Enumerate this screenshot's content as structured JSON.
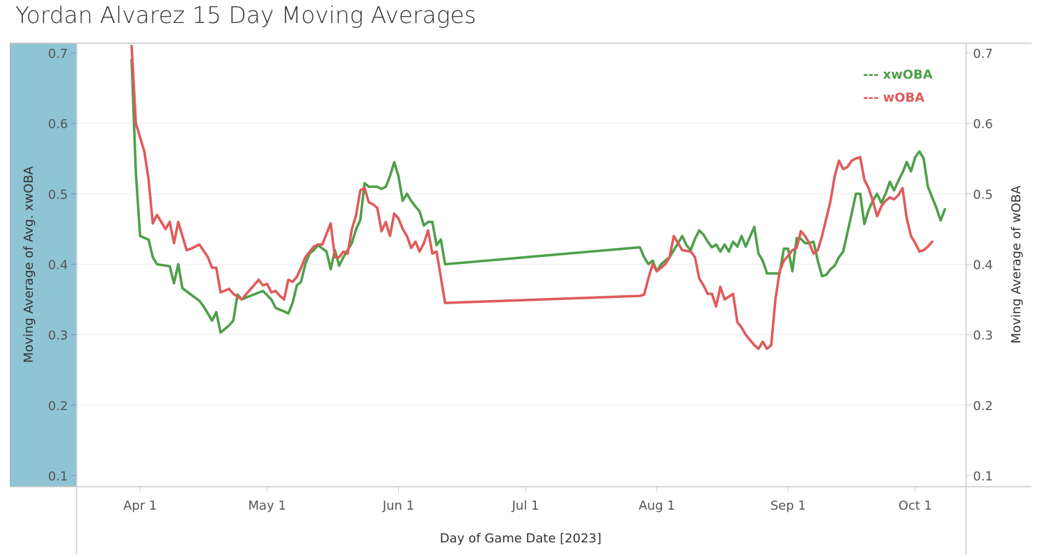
{
  "title": "Yordan Alvarez 15 Day Moving Averages",
  "colors": {
    "xwoba": "#4e9f4a",
    "woba": "#e05a5a",
    "left_band": "#8fc4d4",
    "axis": "#c8c8c8",
    "grid": "#eeeeee"
  },
  "chart_data": {
    "type": "line",
    "title": "Yordan Alvarez 15 Day Moving Averages",
    "xlabel": "Day of Game Date [2023]",
    "ylabel_left": "Moving Average of Avg. xwOBA",
    "ylabel_right": "Moving Average of wOBA",
    "ylim": [
      0.1,
      0.7
    ],
    "yticks": [
      0.7,
      0.6,
      0.5,
      0.4,
      0.3,
      0.2,
      0.1
    ],
    "ytick_labels": [
      "0.7",
      "0.6",
      "0.5",
      "0.4",
      "0.3",
      "0.2",
      "0.1"
    ],
    "xlim": [
      "2023-03-17",
      "2023-10-13"
    ],
    "xticks": [
      "2023-04-01",
      "2023-05-01",
      "2023-06-01",
      "2023-07-01",
      "2023-08-01",
      "2023-09-01",
      "2023-10-01"
    ],
    "xtick_labels": [
      "Apr 1",
      "May 1",
      "Jun 1",
      "Jul 1",
      "Aug 1",
      "Sep 1",
      "Oct 1"
    ],
    "grid": true,
    "legend": {
      "position": "top-right",
      "entries": [
        "--- xwOBA",
        "--- wOBA"
      ]
    },
    "series": [
      {
        "name": "xwOBA",
        "points": [
          [
            "2023-03-30",
            0.69
          ],
          [
            "2023-03-31",
            0.53
          ],
          [
            "2023-04-01",
            0.44
          ],
          [
            "2023-04-03",
            0.435
          ],
          [
            "2023-04-04",
            0.41
          ],
          [
            "2023-04-05",
            0.4
          ],
          [
            "2023-04-07",
            0.398
          ],
          [
            "2023-04-08",
            0.397
          ],
          [
            "2023-04-09",
            0.373
          ],
          [
            "2023-04-10",
            0.4
          ],
          [
            "2023-04-11",
            0.366
          ],
          [
            "2023-04-13",
            0.357
          ],
          [
            "2023-04-15",
            0.348
          ],
          [
            "2023-04-16",
            0.34
          ],
          [
            "2023-04-17",
            0.33
          ],
          [
            "2023-04-18",
            0.32
          ],
          [
            "2023-04-19",
            0.332
          ],
          [
            "2023-04-20",
            0.303
          ],
          [
            "2023-04-22",
            0.313
          ],
          [
            "2023-04-23",
            0.32
          ],
          [
            "2023-04-24",
            0.357
          ],
          [
            "2023-04-25",
            0.35
          ],
          [
            "2023-04-27",
            0.355
          ],
          [
            "2023-04-30",
            0.362
          ],
          [
            "2023-05-02",
            0.35
          ],
          [
            "2023-05-03",
            0.338
          ],
          [
            "2023-05-05",
            0.333
          ],
          [
            "2023-05-06",
            0.33
          ],
          [
            "2023-05-07",
            0.345
          ],
          [
            "2023-05-08",
            0.37
          ],
          [
            "2023-05-09",
            0.375
          ],
          [
            "2023-05-10",
            0.4
          ],
          [
            "2023-05-11",
            0.415
          ],
          [
            "2023-05-12",
            0.42
          ],
          [
            "2023-05-13",
            0.427
          ],
          [
            "2023-05-15",
            0.418
          ],
          [
            "2023-05-16",
            0.393
          ],
          [
            "2023-05-17",
            0.42
          ],
          [
            "2023-05-18",
            0.398
          ],
          [
            "2023-05-19",
            0.41
          ],
          [
            "2023-05-20",
            0.42
          ],
          [
            "2023-05-21",
            0.43
          ],
          [
            "2023-05-22",
            0.45
          ],
          [
            "2023-05-23",
            0.463
          ],
          [
            "2023-05-24",
            0.515
          ],
          [
            "2023-05-25",
            0.51
          ],
          [
            "2023-05-27",
            0.51
          ],
          [
            "2023-05-28",
            0.507
          ],
          [
            "2023-05-29",
            0.51
          ],
          [
            "2023-05-30",
            0.525
          ],
          [
            "2023-05-31",
            0.545
          ],
          [
            "2023-06-01",
            0.525
          ],
          [
            "2023-06-02",
            0.49
          ],
          [
            "2023-06-03",
            0.5
          ],
          [
            "2023-06-04",
            0.49
          ],
          [
            "2023-06-05",
            0.482
          ],
          [
            "2023-06-06",
            0.475
          ],
          [
            "2023-06-07",
            0.455
          ],
          [
            "2023-06-08",
            0.46
          ],
          [
            "2023-06-09",
            0.46
          ],
          [
            "2023-06-10",
            0.427
          ],
          [
            "2023-06-11",
            0.435
          ],
          [
            "2023-06-12",
            0.4
          ],
          [
            "2023-07-28",
            0.424
          ],
          [
            "2023-07-29",
            0.41
          ],
          [
            "2023-07-30",
            0.4
          ],
          [
            "2023-07-31",
            0.405
          ],
          [
            "2023-08-01",
            0.39
          ],
          [
            "2023-08-02",
            0.4
          ],
          [
            "2023-08-03",
            0.405
          ],
          [
            "2023-08-04",
            0.41
          ],
          [
            "2023-08-06",
            0.43
          ],
          [
            "2023-08-07",
            0.44
          ],
          [
            "2023-08-08",
            0.427
          ],
          [
            "2023-08-09",
            0.42
          ],
          [
            "2023-08-10",
            0.436
          ],
          [
            "2023-08-11",
            0.448
          ],
          [
            "2023-08-12",
            0.442
          ],
          [
            "2023-08-13",
            0.432
          ],
          [
            "2023-08-14",
            0.424
          ],
          [
            "2023-08-15",
            0.428
          ],
          [
            "2023-08-16",
            0.418
          ],
          [
            "2023-08-17",
            0.428
          ],
          [
            "2023-08-18",
            0.418
          ],
          [
            "2023-08-19",
            0.432
          ],
          [
            "2023-08-20",
            0.425
          ],
          [
            "2023-08-21",
            0.44
          ],
          [
            "2023-08-22",
            0.425
          ],
          [
            "2023-08-24",
            0.453
          ],
          [
            "2023-08-25",
            0.415
          ],
          [
            "2023-08-26",
            0.405
          ],
          [
            "2023-08-27",
            0.387
          ],
          [
            "2023-08-29",
            0.387
          ],
          [
            "2023-08-30",
            0.387
          ],
          [
            "2023-08-31",
            0.422
          ],
          [
            "2023-09-01",
            0.422
          ],
          [
            "2023-09-02",
            0.39
          ],
          [
            "2023-09-03",
            0.437
          ],
          [
            "2023-09-04",
            0.436
          ],
          [
            "2023-09-05",
            0.43
          ],
          [
            "2023-09-06",
            0.43
          ],
          [
            "2023-09-07",
            0.432
          ],
          [
            "2023-09-08",
            0.405
          ],
          [
            "2023-09-09",
            0.383
          ],
          [
            "2023-09-10",
            0.385
          ],
          [
            "2023-09-11",
            0.393
          ],
          [
            "2023-09-12",
            0.398
          ],
          [
            "2023-09-13",
            0.41
          ],
          [
            "2023-09-14",
            0.418
          ],
          [
            "2023-09-15",
            0.445
          ],
          [
            "2023-09-16",
            0.472
          ],
          [
            "2023-09-17",
            0.5
          ],
          [
            "2023-09-18",
            0.5
          ],
          [
            "2023-09-19",
            0.457
          ],
          [
            "2023-09-20",
            0.477
          ],
          [
            "2023-09-21",
            0.49
          ],
          [
            "2023-09-22",
            0.5
          ],
          [
            "2023-09-23",
            0.487
          ],
          [
            "2023-09-24",
            0.5
          ],
          [
            "2023-09-25",
            0.517
          ],
          [
            "2023-09-26",
            0.505
          ],
          [
            "2023-09-27",
            0.518
          ],
          [
            "2023-09-28",
            0.53
          ],
          [
            "2023-09-29",
            0.545
          ],
          [
            "2023-09-30",
            0.532
          ],
          [
            "2023-10-01",
            0.552
          ],
          [
            "2023-10-02",
            0.56
          ],
          [
            "2023-10-03",
            0.55
          ],
          [
            "2023-10-04",
            0.51
          ],
          [
            "2023-10-05",
            0.495
          ],
          [
            "2023-10-06",
            0.48
          ],
          [
            "2023-10-07",
            0.462
          ],
          [
            "2023-10-08",
            0.478
          ]
        ]
      },
      {
        "name": "wOBA",
        "points": [
          [
            "2023-03-30",
            0.71
          ],
          [
            "2023-03-31",
            0.6
          ],
          [
            "2023-04-01",
            0.58
          ],
          [
            "2023-04-02",
            0.56
          ],
          [
            "2023-04-03",
            0.52
          ],
          [
            "2023-04-04",
            0.458
          ],
          [
            "2023-04-05",
            0.47
          ],
          [
            "2023-04-06",
            0.46
          ],
          [
            "2023-04-07",
            0.45
          ],
          [
            "2023-04-08",
            0.46
          ],
          [
            "2023-04-09",
            0.43
          ],
          [
            "2023-04-10",
            0.46
          ],
          [
            "2023-04-12",
            0.42
          ],
          [
            "2023-04-13",
            0.422
          ],
          [
            "2023-04-15",
            0.428
          ],
          [
            "2023-04-17",
            0.41
          ],
          [
            "2023-04-18",
            0.395
          ],
          [
            "2023-04-19",
            0.395
          ],
          [
            "2023-04-20",
            0.36
          ],
          [
            "2023-04-22",
            0.365
          ],
          [
            "2023-04-23",
            0.358
          ],
          [
            "2023-04-25",
            0.35
          ],
          [
            "2023-04-29",
            0.378
          ],
          [
            "2023-04-30",
            0.37
          ],
          [
            "2023-05-01",
            0.372
          ],
          [
            "2023-05-02",
            0.36
          ],
          [
            "2023-05-03",
            0.362
          ],
          [
            "2023-05-04",
            0.355
          ],
          [
            "2023-05-05",
            0.35
          ],
          [
            "2023-05-06",
            0.378
          ],
          [
            "2023-05-07",
            0.375
          ],
          [
            "2023-05-08",
            0.382
          ],
          [
            "2023-05-09",
            0.395
          ],
          [
            "2023-05-10",
            0.41
          ],
          [
            "2023-05-12",
            0.425
          ],
          [
            "2023-05-13",
            0.428
          ],
          [
            "2023-05-14",
            0.428
          ],
          [
            "2023-05-15",
            0.443
          ],
          [
            "2023-05-16",
            0.458
          ],
          [
            "2023-05-17",
            0.41
          ],
          [
            "2023-05-18",
            0.41
          ],
          [
            "2023-05-19",
            0.418
          ],
          [
            "2023-05-20",
            0.415
          ],
          [
            "2023-05-21",
            0.45
          ],
          [
            "2023-05-22",
            0.47
          ],
          [
            "2023-05-23",
            0.505
          ],
          [
            "2023-05-24",
            0.508
          ],
          [
            "2023-05-25",
            0.488
          ],
          [
            "2023-05-26",
            0.485
          ],
          [
            "2023-05-27",
            0.48
          ],
          [
            "2023-05-28",
            0.447
          ],
          [
            "2023-05-29",
            0.46
          ],
          [
            "2023-05-30",
            0.44
          ],
          [
            "2023-05-31",
            0.472
          ],
          [
            "2023-06-01",
            0.465
          ],
          [
            "2023-06-02",
            0.45
          ],
          [
            "2023-06-03",
            0.44
          ],
          [
            "2023-06-04",
            0.423
          ],
          [
            "2023-06-05",
            0.432
          ],
          [
            "2023-06-06",
            0.418
          ],
          [
            "2023-06-07",
            0.43
          ],
          [
            "2023-06-08",
            0.448
          ],
          [
            "2023-06-09",
            0.415
          ],
          [
            "2023-06-10",
            0.418
          ],
          [
            "2023-06-12",
            0.345
          ],
          [
            "2023-07-28",
            0.355
          ],
          [
            "2023-07-29",
            0.357
          ],
          [
            "2023-07-30",
            0.38
          ],
          [
            "2023-07-31",
            0.4
          ],
          [
            "2023-08-01",
            0.39
          ],
          [
            "2023-08-02",
            0.395
          ],
          [
            "2023-08-03",
            0.4
          ],
          [
            "2023-08-04",
            0.41
          ],
          [
            "2023-08-05",
            0.44
          ],
          [
            "2023-08-06",
            0.43
          ],
          [
            "2023-08-07",
            0.42
          ],
          [
            "2023-08-09",
            0.418
          ],
          [
            "2023-08-10",
            0.41
          ],
          [
            "2023-08-11",
            0.38
          ],
          [
            "2023-08-12",
            0.37
          ],
          [
            "2023-08-13",
            0.358
          ],
          [
            "2023-08-14",
            0.358
          ],
          [
            "2023-08-15",
            0.34
          ],
          [
            "2023-08-16",
            0.368
          ],
          [
            "2023-08-17",
            0.35
          ],
          [
            "2023-08-19",
            0.358
          ],
          [
            "2023-08-20",
            0.318
          ],
          [
            "2023-08-21",
            0.31
          ],
          [
            "2023-08-22",
            0.3
          ],
          [
            "2023-08-24",
            0.285
          ],
          [
            "2023-08-25",
            0.28
          ],
          [
            "2023-08-26",
            0.29
          ],
          [
            "2023-08-27",
            0.28
          ],
          [
            "2023-08-28",
            0.285
          ],
          [
            "2023-08-29",
            0.35
          ],
          [
            "2023-08-30",
            0.39
          ],
          [
            "2023-08-31",
            0.405
          ],
          [
            "2023-09-01",
            0.412
          ],
          [
            "2023-09-02",
            0.42
          ],
          [
            "2023-09-03",
            0.423
          ],
          [
            "2023-09-04",
            0.447
          ],
          [
            "2023-09-05",
            0.44
          ],
          [
            "2023-09-06",
            0.43
          ],
          [
            "2023-09-07",
            0.415
          ],
          [
            "2023-09-08",
            0.42
          ],
          [
            "2023-09-09",
            0.44
          ],
          [
            "2023-09-10",
            0.465
          ],
          [
            "2023-09-11",
            0.49
          ],
          [
            "2023-09-12",
            0.525
          ],
          [
            "2023-09-13",
            0.547
          ],
          [
            "2023-09-14",
            0.535
          ],
          [
            "2023-09-15",
            0.538
          ],
          [
            "2023-09-16",
            0.547
          ],
          [
            "2023-09-17",
            0.55
          ],
          [
            "2023-09-18",
            0.552
          ],
          [
            "2023-09-19",
            0.52
          ],
          [
            "2023-09-20",
            0.508
          ],
          [
            "2023-09-21",
            0.49
          ],
          [
            "2023-09-22",
            0.468
          ],
          [
            "2023-09-23",
            0.482
          ],
          [
            "2023-09-24",
            0.49
          ],
          [
            "2023-09-25",
            0.495
          ],
          [
            "2023-09-26",
            0.492
          ],
          [
            "2023-09-27",
            0.498
          ],
          [
            "2023-09-28",
            0.508
          ],
          [
            "2023-09-29",
            0.465
          ],
          [
            "2023-09-30",
            0.44
          ],
          [
            "2023-10-01",
            0.43
          ],
          [
            "2023-10-02",
            0.418
          ],
          [
            "2023-10-03",
            0.42
          ],
          [
            "2023-10-04",
            0.425
          ],
          [
            "2023-10-05",
            0.432
          ]
        ]
      }
    ]
  }
}
